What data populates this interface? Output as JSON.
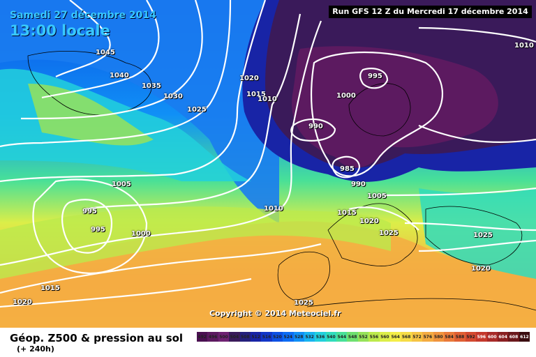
{
  "header": {
    "date": "Samedi 27 décembre 2014",
    "time": "13:00 locale",
    "run": "Run GFS 12 Z du Mercredi 17 décembre 2014"
  },
  "copyright": "Copyright © 2014 Meteociel.fr",
  "caption": {
    "title": "Géop. Z500 & pression au sol",
    "range": "(+ 240h)"
  },
  "legend": {
    "values": [
      "492",
      "496",
      "500",
      "504",
      "508",
      "512",
      "516",
      "520",
      "524",
      "528",
      "532",
      "536",
      "540",
      "544",
      "548",
      "552",
      "556",
      "560",
      "564",
      "568",
      "572",
      "576",
      "580",
      "584",
      "588",
      "592",
      "596",
      "600",
      "604",
      "608",
      "612"
    ],
    "colors": [
      "#4a1050",
      "#5c1a60",
      "#6e2272",
      "#3a1a5a",
      "#24207c",
      "#1824a6",
      "#1236c8",
      "#0c50e4",
      "#0c6cf4",
      "#1090f6",
      "#18b4f0",
      "#22d0dc",
      "#30dcbc",
      "#48e098",
      "#6ee070",
      "#96e25a",
      "#bcea4c",
      "#dcee48",
      "#f4ee48",
      "#f6dc46",
      "#f6c444",
      "#f4ac42",
      "#f0943e",
      "#ea7a3a",
      "#e06034",
      "#d44a30",
      "#c4382c",
      "#a82a28",
      "#8a2022",
      "#6a181c",
      "#3a0c10"
    ]
  },
  "isobars": [
    {
      "value": "1045"
    },
    {
      "value": "1040"
    },
    {
      "value": "1035"
    },
    {
      "value": "1030"
    },
    {
      "value": "1025"
    },
    {
      "value": "1020"
    },
    {
      "value": "1015"
    },
    {
      "value": "1010"
    },
    {
      "value": "1005"
    },
    {
      "value": "1000"
    },
    {
      "value": "995"
    },
    {
      "value": "995"
    },
    {
      "value": "990"
    },
    {
      "value": "995"
    },
    {
      "value": "1000"
    },
    {
      "value": "985"
    },
    {
      "value": "990"
    },
    {
      "value": "1005"
    },
    {
      "value": "1010"
    },
    {
      "value": "1015"
    },
    {
      "value": "1020"
    },
    {
      "value": "1025"
    },
    {
      "value": "1025"
    },
    {
      "value": "1020"
    },
    {
      "value": "1025"
    },
    {
      "value": "1015"
    },
    {
      "value": "1020"
    },
    {
      "value": "1010"
    }
  ]
}
